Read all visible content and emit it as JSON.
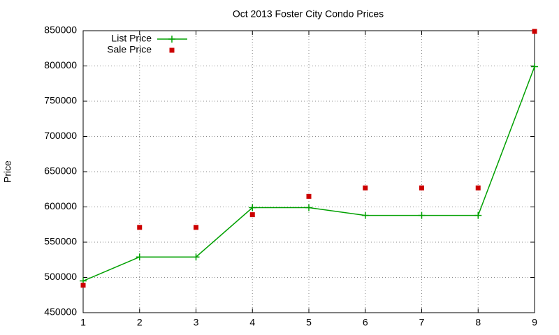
{
  "chart_data": {
    "type": "line",
    "title": "Oct 2013 Foster City Condo Prices",
    "y_label": "Price",
    "x": [
      1,
      2,
      3,
      4,
      5,
      6,
      7,
      8,
      9
    ],
    "xlim": [
      1,
      9
    ],
    "xticks": [
      1,
      2,
      3,
      4,
      5,
      6,
      7,
      8,
      9
    ],
    "ylim": [
      450000,
      850000
    ],
    "yticks": [
      450000,
      500000,
      550000,
      600000,
      650000,
      700000,
      750000,
      800000,
      850000
    ],
    "grid": true,
    "legend": "top-left",
    "series": [
      {
        "name": "List Price",
        "color": "#00a000",
        "style": "linespoints",
        "values": [
          495000,
          529000,
          529000,
          599000,
          599000,
          588000,
          588000,
          588000,
          799000
        ]
      },
      {
        "name": "Sale Price",
        "color": "#cc0000",
        "style": "points",
        "values": [
          489000,
          571000,
          571000,
          589000,
          615000,
          627000,
          627000,
          627000,
          849000
        ]
      }
    ]
  }
}
